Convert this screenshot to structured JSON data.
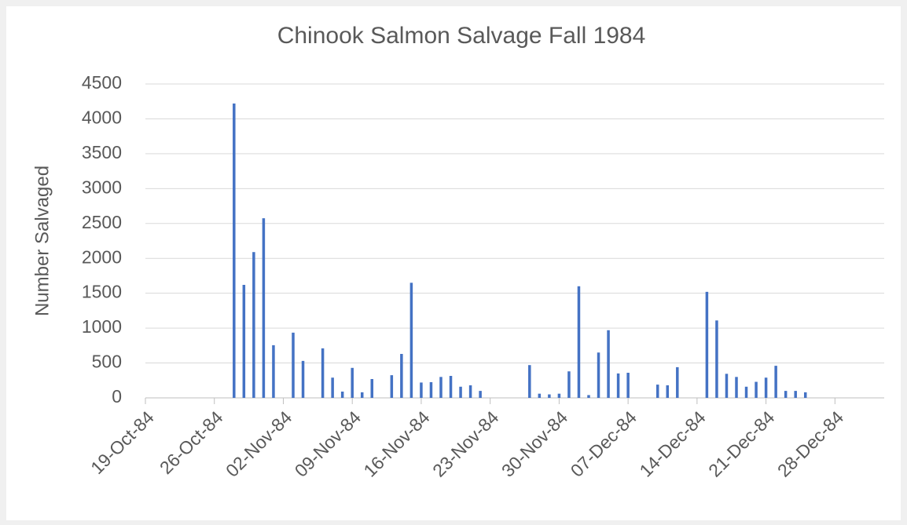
{
  "chart_data": {
    "type": "bar",
    "title": "Chinook Salmon Salvage Fall 1984",
    "y_label": "Number Salvaged",
    "x": [
      "1984-10-28",
      "1984-10-29",
      "1984-10-30",
      "1984-10-31",
      "1984-11-01",
      "1984-11-03",
      "1984-11-04",
      "1984-11-06",
      "1984-11-07",
      "1984-11-08",
      "1984-11-09",
      "1984-11-10",
      "1984-11-11",
      "1984-11-13",
      "1984-11-14",
      "1984-11-15",
      "1984-11-16",
      "1984-11-17",
      "1984-11-18",
      "1984-11-19",
      "1984-11-20",
      "1984-11-21",
      "1984-11-22",
      "1984-11-27",
      "1984-11-28",
      "1984-11-29",
      "1984-11-30",
      "1984-12-01",
      "1984-12-02",
      "1984-12-03",
      "1984-12-04",
      "1984-12-05",
      "1984-12-06",
      "1984-12-07",
      "1984-12-10",
      "1984-12-11",
      "1984-12-12",
      "1984-12-15",
      "1984-12-16",
      "1984-12-17",
      "1984-12-18",
      "1984-12-19",
      "1984-12-20",
      "1984-12-21",
      "1984-12-22",
      "1984-12-23",
      "1984-12-24",
      "1984-12-25"
    ],
    "values": [
      4220,
      1620,
      2090,
      2575,
      755,
      935,
      530,
      710,
      290,
      90,
      430,
      80,
      270,
      325,
      630,
      1650,
      220,
      225,
      300,
      315,
      160,
      180,
      100,
      470,
      60,
      50,
      60,
      380,
      1600,
      40,
      650,
      970,
      350,
      360,
      190,
      180,
      440,
      1520,
      1110,
      345,
      300,
      160,
      230,
      290,
      460,
      100,
      100,
      80
    ],
    "color": "#4472c4",
    "xlim": [
      "1984-10-19",
      "1985-01-02"
    ],
    "xticks": [
      {
        "value": "1984-10-19",
        "label": "19-Oct-84"
      },
      {
        "value": "1984-10-26",
        "label": "26-Oct-84"
      },
      {
        "value": "1984-11-02",
        "label": "02-Nov-84"
      },
      {
        "value": "1984-11-09",
        "label": "09-Nov-84"
      },
      {
        "value": "1984-11-16",
        "label": "16-Nov-84"
      },
      {
        "value": "1984-11-23",
        "label": "23-Nov-84"
      },
      {
        "value": "1984-11-30",
        "label": "30-Nov-84"
      },
      {
        "value": "1984-12-07",
        "label": "07-Dec-84"
      },
      {
        "value": "1984-12-14",
        "label": "14-Dec-84"
      },
      {
        "value": "1984-12-21",
        "label": "21-Dec-84"
      },
      {
        "value": "1984-12-28",
        "label": "28-Dec-84"
      }
    ],
    "ylim": [
      0,
      4500
    ],
    "yticks": [
      0,
      500,
      1000,
      1500,
      2000,
      2500,
      3000,
      3500,
      4000,
      4500
    ],
    "grid": true
  }
}
